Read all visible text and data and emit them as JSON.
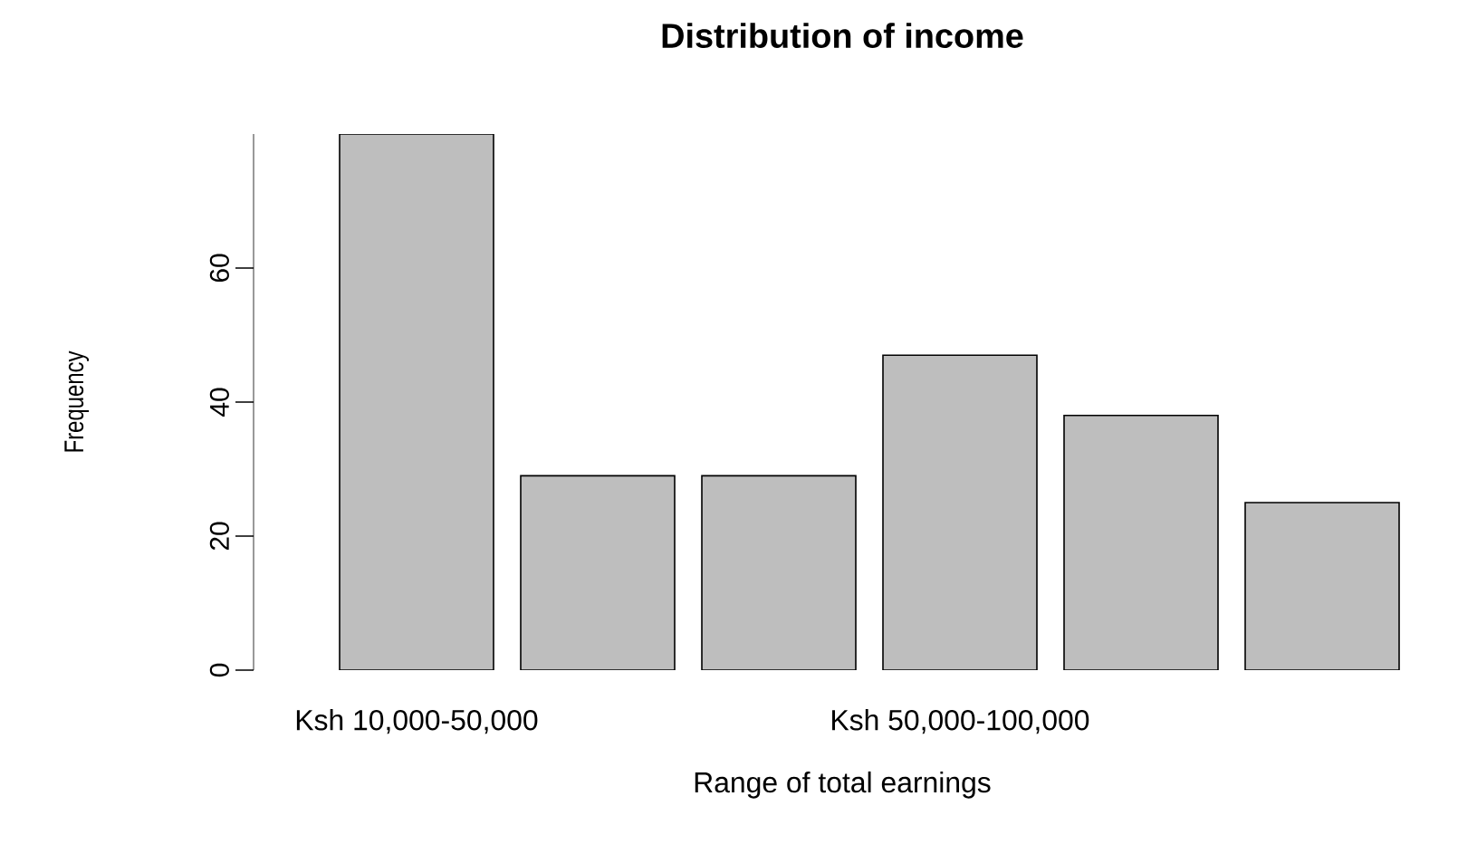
{
  "chart_data": {
    "type": "bar",
    "title": "Distribution of income",
    "xlabel": "Range of total earnings",
    "ylabel": "Frequency",
    "categories": [
      "Ksh 10,000-50,000",
      null,
      null,
      "Ksh 50,000-100,000",
      null,
      null
    ],
    "values": [
      80,
      29,
      29,
      47,
      38,
      25
    ],
    "color": "#bebebe",
    "ylim": [
      0,
      80
    ],
    "yticks": [
      0,
      20,
      40,
      60
    ],
    "grid": false
  }
}
